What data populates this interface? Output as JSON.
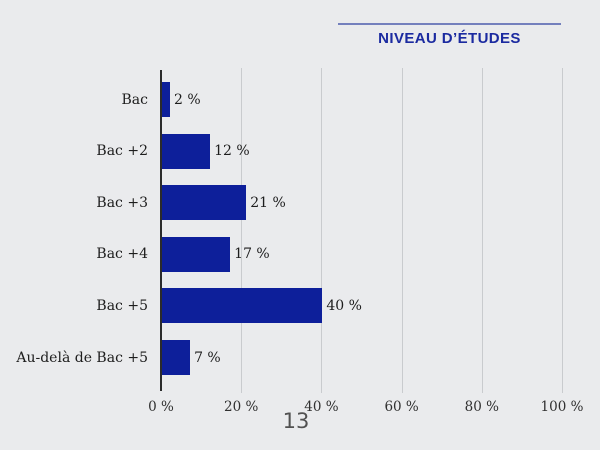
{
  "header": {
    "title": "NIVEAU D’ÉTUDES"
  },
  "footer": {
    "page_number": "13"
  },
  "colors": {
    "background": "#eaebed",
    "bar": "#0d1f9a",
    "title": "#1b2aa0",
    "title_rule": "#7480bd",
    "gridline": "#c9cbce",
    "axis": "#2b2b2b",
    "label_text": "#1d1d1d"
  },
  "chart_data": {
    "type": "bar",
    "orientation": "horizontal",
    "title": "NIVEAU D’ÉTUDES",
    "categories": [
      "Bac",
      "Bac +2",
      "Bac +3",
      "Bac +4",
      "Bac +5",
      "Au-delà de Bac +5"
    ],
    "values": [
      2,
      12,
      21,
      17,
      40,
      7
    ],
    "value_labels": [
      "2 %",
      "12 %",
      "21 %",
      "17 %",
      "40 %",
      "7 %"
    ],
    "xlabel": "",
    "ylabel": "",
    "xlim": [
      0,
      100
    ],
    "tick_values": [
      0,
      20,
      40,
      60,
      80,
      100
    ],
    "tick_labels": [
      "0 %",
      "20 %",
      "40 %",
      "60 %",
      "80 %",
      "100 %"
    ],
    "grid": true,
    "legend": false,
    "bar_color": "#0d1f9a"
  }
}
